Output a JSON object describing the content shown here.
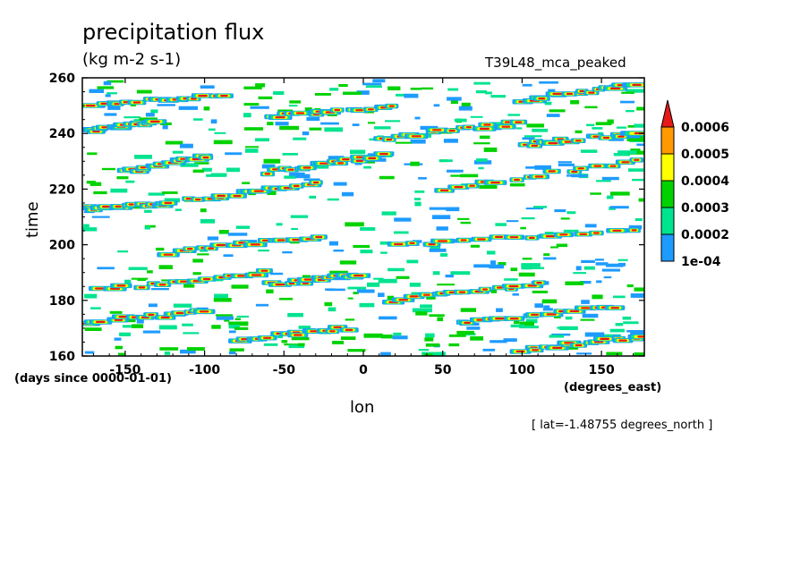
{
  "chart_data": {
    "type": "heatmap",
    "title": "precipitation flux",
    "subtitle": "(kg m-2 s-1)",
    "run_label": "T39L48_mca_peaked",
    "xlabel": "lon",
    "ylabel": "time",
    "x_units": "(degrees_east)",
    "y_units": "(days since 0000-01-01)",
    "note": "[ lat=-1.48755 degrees_north ]",
    "xlim": [
      -177,
      177
    ],
    "ylim": [
      160,
      260
    ],
    "x_ticks": [
      {
        "value": -150,
        "label": "-150"
      },
      {
        "value": -100,
        "label": "-100"
      },
      {
        "value": -50,
        "label": "-50"
      },
      {
        "value": 0,
        "label": "0"
      },
      {
        "value": 50,
        "label": "50"
      },
      {
        "value": 100,
        "label": "100"
      },
      {
        "value": 150,
        "label": "150"
      }
    ],
    "y_ticks": [
      {
        "value": 160,
        "label": "160"
      },
      {
        "value": 180,
        "label": "180"
      },
      {
        "value": 200,
        "label": "200"
      },
      {
        "value": 220,
        "label": "220"
      },
      {
        "value": 240,
        "label": "240"
      },
      {
        "value": 260,
        "label": "260"
      }
    ],
    "colorbar": {
      "levels": [
        {
          "value": 0.0001,
          "label": "1e-04"
        },
        {
          "value": 0.0002,
          "label": "0.0002"
        },
        {
          "value": 0.0003,
          "label": "0.0003"
        },
        {
          "value": 0.0004,
          "label": "0.0004"
        },
        {
          "value": 0.0005,
          "label": "0.0005"
        },
        {
          "value": 0.0006,
          "label": "0.0006"
        }
      ],
      "colors": [
        "#1e9bff",
        "#00e38f",
        "#00d200",
        "#ffff00",
        "#ff9900",
        "#e61919"
      ]
    },
    "features": [
      {
        "lon0": -175,
        "time0": 172,
        "lon1": -100,
        "time1": 176
      },
      {
        "lon0": -165,
        "time0": 184,
        "lon1": -60,
        "time1": 190
      },
      {
        "lon0": -55,
        "time0": 186,
        "lon1": 0,
        "time1": 189
      },
      {
        "lon0": -120,
        "time0": 197,
        "lon1": -30,
        "time1": 203
      },
      {
        "lon0": 20,
        "time0": 200,
        "lon1": 170,
        "time1": 205
      },
      {
        "lon0": -175,
        "time0": 213,
        "lon1": -120,
        "time1": 215
      },
      {
        "lon0": -110,
        "time0": 216,
        "lon1": -30,
        "time1": 222
      },
      {
        "lon0": 50,
        "time0": 220,
        "lon1": 175,
        "time1": 230
      },
      {
        "lon0": -175,
        "time0": 241,
        "lon1": -130,
        "time1": 244
      },
      {
        "lon0": 10,
        "time0": 238,
        "lon1": 100,
        "time1": 244
      },
      {
        "lon0": 100,
        "time0": 236,
        "lon1": 175,
        "time1": 240
      },
      {
        "lon0": -170,
        "time0": 250,
        "lon1": -90,
        "time1": 254
      },
      {
        "lon0": -60,
        "time0": 246,
        "lon1": 20,
        "time1": 250
      },
      {
        "lon0": 60,
        "time0": 172,
        "lon1": 160,
        "time1": 178
      },
      {
        "lon0": 100,
        "time0": 162,
        "lon1": 175,
        "time1": 167
      },
      {
        "lon0": -80,
        "time0": 166,
        "lon1": -10,
        "time1": 170
      },
      {
        "lon0": 20,
        "time0": 180,
        "lon1": 110,
        "time1": 186
      },
      {
        "lon0": -60,
        "time0": 226,
        "lon1": 10,
        "time1": 232
      },
      {
        "lon0": 100,
        "time0": 252,
        "lon1": 170,
        "time1": 257
      },
      {
        "lon0": -150,
        "time0": 226,
        "lon1": -100,
        "time1": 232
      }
    ]
  }
}
